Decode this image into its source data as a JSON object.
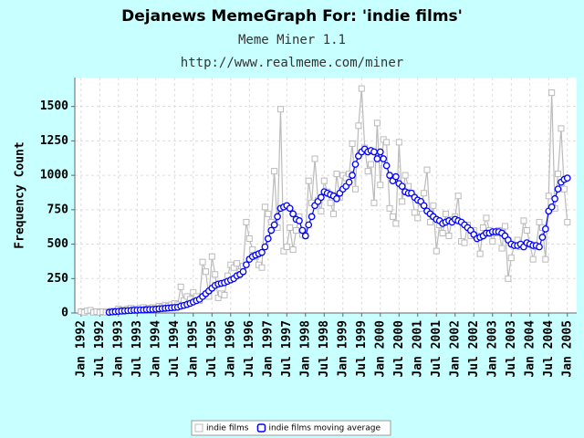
{
  "chart_data": {
    "type": "line",
    "title": "Dejanews MemeGraph For: 'indie films'",
    "subtitle": [
      "Meme Miner 1.1",
      "http://www.realmeme.com/miner"
    ],
    "y_label": "Frequency Count",
    "x": [
      "1992-01",
      "1992-02",
      "1992-03",
      "1992-04",
      "1992-05",
      "1992-06",
      "1992-07",
      "1992-08",
      "1992-09",
      "1992-10",
      "1992-11",
      "1992-12",
      "1993-01",
      "1993-02",
      "1993-03",
      "1993-04",
      "1993-05",
      "1993-06",
      "1993-07",
      "1993-08",
      "1993-09",
      "1993-10",
      "1993-11",
      "1993-12",
      "1994-01",
      "1994-02",
      "1994-03",
      "1994-04",
      "1994-05",
      "1994-06",
      "1994-07",
      "1994-08",
      "1994-09",
      "1994-10",
      "1994-11",
      "1994-12",
      "1995-01",
      "1995-02",
      "1995-03",
      "1995-04",
      "1995-05",
      "1995-06",
      "1995-07",
      "1995-08",
      "1995-09",
      "1995-10",
      "1995-11",
      "1995-12",
      "1996-01",
      "1996-02",
      "1996-03",
      "1996-04",
      "1996-05",
      "1996-06",
      "1996-07",
      "1996-08",
      "1996-09",
      "1996-10",
      "1996-11",
      "1996-12",
      "1997-01",
      "1997-02",
      "1997-03",
      "1997-04",
      "1997-05",
      "1997-06",
      "1997-07",
      "1997-08",
      "1997-09",
      "1997-10",
      "1997-11",
      "1997-12",
      "1998-01",
      "1998-02",
      "1998-03",
      "1998-04",
      "1998-05",
      "1998-06",
      "1998-07",
      "1998-08",
      "1998-09",
      "1998-10",
      "1998-11",
      "1998-12",
      "1999-01",
      "1999-02",
      "1999-03",
      "1999-04",
      "1999-05",
      "1999-06",
      "1999-07",
      "1999-08",
      "1999-09",
      "1999-10",
      "1999-11",
      "1999-12",
      "2000-01",
      "2000-02",
      "2000-03",
      "2000-04",
      "2000-05",
      "2000-06",
      "2000-07",
      "2000-08",
      "2000-09",
      "2000-10",
      "2000-11",
      "2000-12",
      "2001-01",
      "2001-02",
      "2001-03",
      "2001-04",
      "2001-05",
      "2001-06",
      "2001-07",
      "2001-08",
      "2001-09",
      "2001-10",
      "2001-11",
      "2001-12",
      "2002-01",
      "2002-02",
      "2002-03",
      "2002-04",
      "2002-05",
      "2002-06",
      "2002-07",
      "2002-08",
      "2002-09",
      "2002-10",
      "2002-11",
      "2002-12",
      "2003-01",
      "2003-02",
      "2003-03",
      "2003-04",
      "2003-05",
      "2003-06",
      "2003-07",
      "2003-08",
      "2003-09",
      "2003-10",
      "2003-11",
      "2003-12",
      "2004-01",
      "2004-02",
      "2004-03",
      "2004-04",
      "2004-05",
      "2004-06",
      "2004-07",
      "2004-08",
      "2004-09",
      "2004-10",
      "2004-11",
      "2004-12",
      "2005-01"
    ],
    "series": [
      {
        "name": "indie films",
        "color": "#bbbbbb",
        "marker": "square",
        "values": [
          10,
          5,
          15,
          20,
          5,
          10,
          5,
          10,
          5,
          10,
          15,
          10,
          30,
          20,
          25,
          30,
          35,
          25,
          30,
          35,
          40,
          30,
          35,
          40,
          40,
          50,
          45,
          55,
          50,
          60,
          70,
          60,
          190,
          90,
          120,
          100,
          150,
          120,
          90,
          370,
          300,
          120,
          410,
          280,
          110,
          140,
          130,
          270,
          350,
          330,
          360,
          300,
          340,
          660,
          540,
          460,
          410,
          350,
          330,
          770,
          720,
          660,
          1030,
          620,
          1480,
          450,
          480,
          620,
          460,
          600,
          700,
          570,
          560,
          960,
          800,
          1120,
          820,
          740,
          960,
          880,
          800,
          720,
          1010,
          840,
          1000,
          980,
          1010,
          1230,
          900,
          1360,
          1630,
          1200,
          1030,
          1080,
          800,
          1380,
          930,
          1260,
          1240,
          760,
          700,
          650,
          1240,
          810,
          1000,
          920,
          870,
          730,
          690,
          760,
          870,
          1040,
          660,
          780,
          450,
          640,
          580,
          720,
          560,
          680,
          700,
          850,
          520,
          510,
          640,
          560,
          600,
          560,
          430,
          620,
          690,
          600,
          520,
          580,
          600,
          470,
          630,
          250,
          400,
          500,
          530,
          480,
          670,
          600,
          500,
          390,
          480,
          660,
          620,
          390,
          850,
          1600,
          760,
          1010,
          1340,
          900,
          660
        ]
      },
      {
        "name": "indie films moving average",
        "color": "#0000ff",
        "marker": "circle",
        "values": [
          null,
          null,
          null,
          null,
          null,
          null,
          null,
          null,
          null,
          5,
          8,
          10,
          12,
          14,
          15,
          17,
          18,
          20,
          20,
          22,
          22,
          24,
          25,
          26,
          28,
          30,
          32,
          34,
          36,
          38,
          40,
          42,
          50,
          55,
          62,
          70,
          80,
          90,
          100,
          120,
          140,
          160,
          180,
          200,
          210,
          215,
          220,
          230,
          240,
          250,
          270,
          280,
          300,
          350,
          390,
          410,
          420,
          430,
          440,
          480,
          540,
          600,
          640,
          700,
          760,
          770,
          780,
          760,
          720,
          680,
          670,
          600,
          560,
          640,
          700,
          780,
          810,
          840,
          880,
          870,
          860,
          850,
          830,
          870,
          900,
          920,
          950,
          1000,
          1080,
          1140,
          1170,
          1190,
          1170,
          1180,
          1170,
          1120,
          1170,
          1120,
          1070,
          1000,
          960,
          990,
          940,
          920,
          880,
          870,
          870,
          840,
          820,
          810,
          780,
          740,
          720,
          700,
          680,
          670,
          650,
          660,
          670,
          660,
          680,
          670,
          660,
          640,
          620,
          600,
          570,
          540,
          550,
          560,
          580,
          580,
          590,
          590,
          590,
          580,
          560,
          530,
          500,
          490,
          490,
          500,
          480,
          510,
          500,
          490,
          490,
          480,
          550,
          610,
          740,
          770,
          830,
          900,
          950,
          970,
          980
        ]
      }
    ],
    "xlim": [
      "1991-11",
      "2005-04"
    ],
    "xticks": [
      {
        "value": "1992-01",
        "label": "Jan 1992"
      },
      {
        "value": "1992-07",
        "label": "Jul 1992"
      },
      {
        "value": "1993-01",
        "label": "Jan 1993"
      },
      {
        "value": "1993-07",
        "label": "Jul 1993"
      },
      {
        "value": "1994-01",
        "label": "Jan 1994"
      },
      {
        "value": "1994-07",
        "label": "Jul 1994"
      },
      {
        "value": "1995-01",
        "label": "Jan 1995"
      },
      {
        "value": "1995-07",
        "label": "Jul 1995"
      },
      {
        "value": "1996-01",
        "label": "Jan 1996"
      },
      {
        "value": "1996-07",
        "label": "Jul 1996"
      },
      {
        "value": "1997-01",
        "label": "Jan 1997"
      },
      {
        "value": "1997-07",
        "label": "Jul 1997"
      },
      {
        "value": "1998-01",
        "label": "Jan 1998"
      },
      {
        "value": "1998-07",
        "label": "Jul 1998"
      },
      {
        "value": "1999-01",
        "label": "Jan 1999"
      },
      {
        "value": "1999-07",
        "label": "Jul 1999"
      },
      {
        "value": "2000-01",
        "label": "Jan 2000"
      },
      {
        "value": "2000-07",
        "label": "Jul 2000"
      },
      {
        "value": "2001-01",
        "label": "Jan 2001"
      },
      {
        "value": "2001-07",
        "label": "Jul 2001"
      },
      {
        "value": "2002-01",
        "label": "Jan 2002"
      },
      {
        "value": "2002-07",
        "label": "Jul 2002"
      },
      {
        "value": "2003-01",
        "label": "Jan 2003"
      },
      {
        "value": "2003-07",
        "label": "Jul 2003"
      },
      {
        "value": "2004-01",
        "label": "Jan 2004"
      },
      {
        "value": "2004-07",
        "label": "Jul 2004"
      },
      {
        "value": "2005-01",
        "label": "Jan 2005"
      }
    ],
    "ylim": [
      0,
      1710
    ],
    "yticks": [
      0,
      250,
      500,
      750,
      1000,
      1250,
      1500
    ],
    "grid": true,
    "legend": "bottom"
  }
}
